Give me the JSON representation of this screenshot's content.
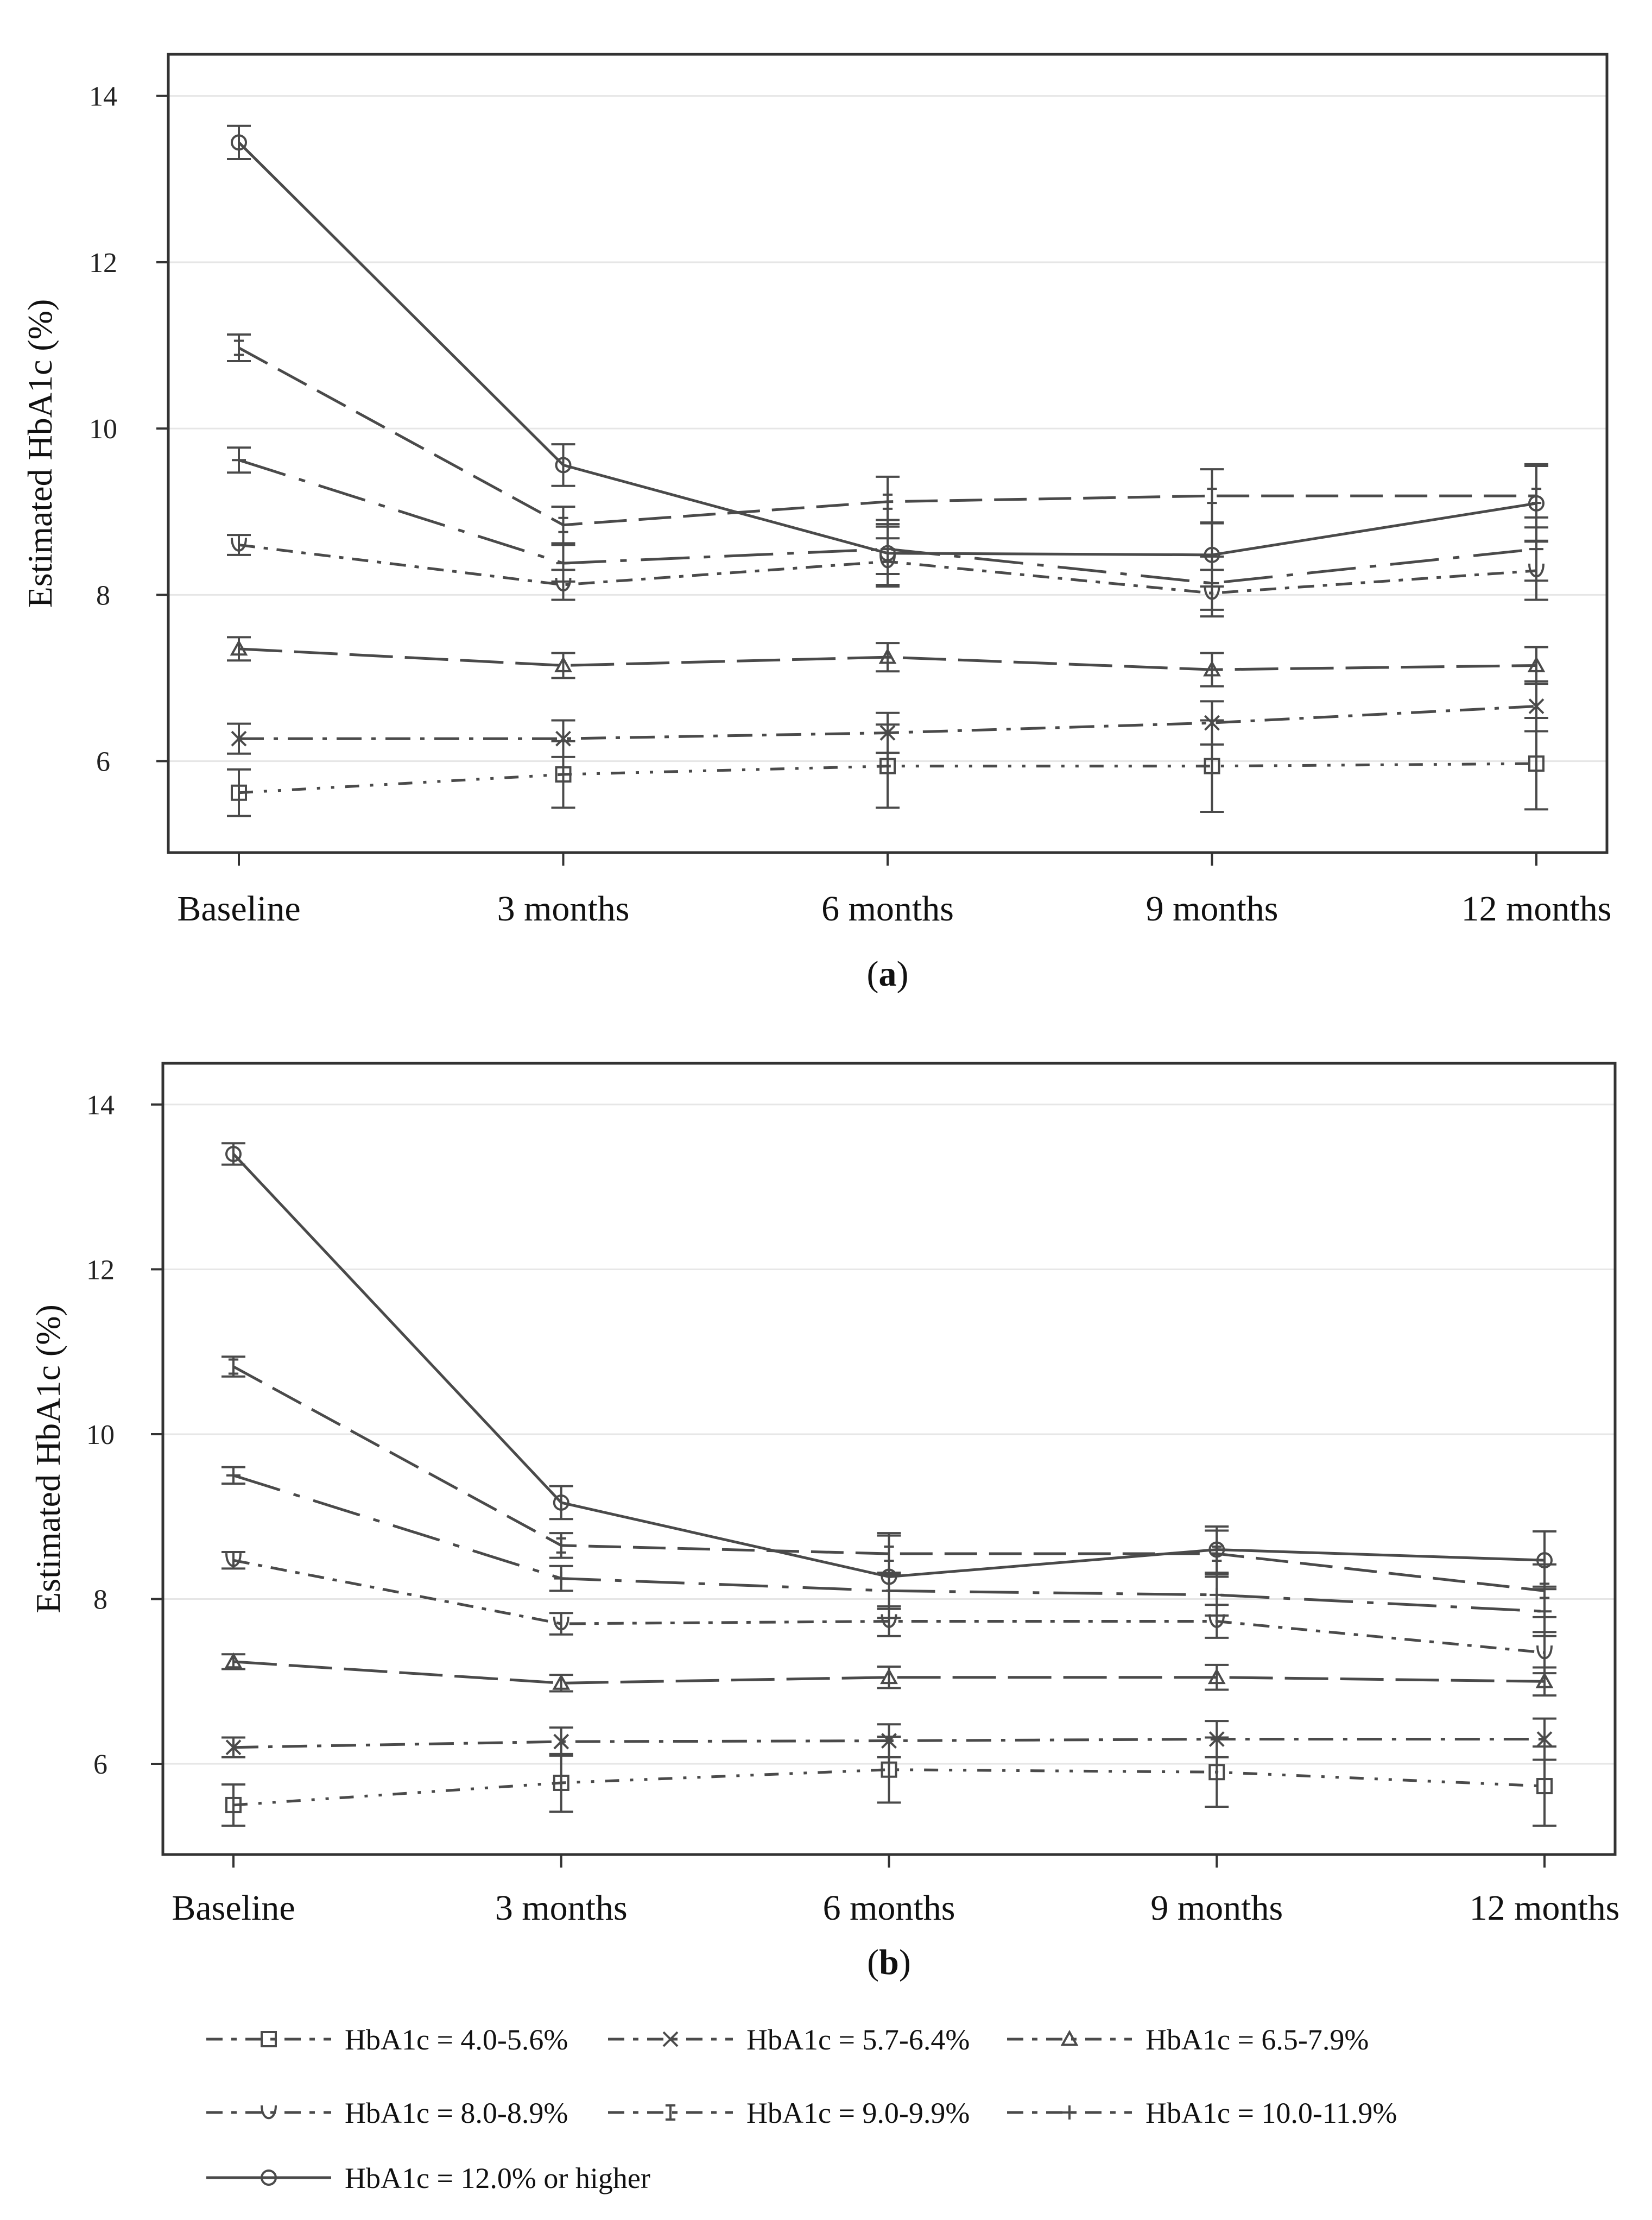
{
  "chart_data": [
    {
      "panel_label": "a",
      "type": "line",
      "ylabel": "Estimated HbA1c (%)",
      "xlabel": "",
      "categories": [
        "Baseline",
        "3 months",
        "6 months",
        "9 months",
        "12 months"
      ],
      "yticks": [
        "6",
        "8",
        "10",
        "12",
        "14"
      ],
      "ylim": [
        4.9,
        14.5
      ],
      "grid": true,
      "series": [
        {
          "name": "HbA1c = 4.0-5.6%",
          "values": [
            5.62,
            5.84,
            5.94,
            5.94,
            5.97
          ],
          "err": [
            0.28,
            0.4,
            0.5,
            0.55,
            0.55
          ]
        },
        {
          "name": "HbA1c = 5.7-6.4%",
          "values": [
            6.27,
            6.27,
            6.34,
            6.46,
            6.66
          ],
          "err": [
            0.18,
            0.22,
            0.24,
            0.26,
            0.3
          ]
        },
        {
          "name": "HbA1c = 6.5-7.9%",
          "values": [
            7.35,
            7.15,
            7.25,
            7.1,
            7.15
          ],
          "err": [
            0.14,
            0.15,
            0.17,
            0.2,
            0.22
          ]
        },
        {
          "name": "HbA1c = 8.0-8.9%",
          "values": [
            8.6,
            8.12,
            8.4,
            8.02,
            8.29
          ],
          "err": [
            0.12,
            0.18,
            0.28,
            0.28,
            0.35
          ]
        },
        {
          "name": "HbA1c = 9.0-9.9%",
          "values": [
            10.97,
            8.84,
            9.12,
            9.19,
            9.19
          ],
          "err": [
            0.16,
            0.22,
            0.3,
            0.32,
            0.38
          ]
        },
        {
          "name": "HbA1c = 10.0-11.9%",
          "values": [
            9.62,
            8.38,
            8.55,
            8.14,
            8.55
          ],
          "err": [
            0.15,
            0.22,
            0.3,
            0.32,
            0.38
          ]
        },
        {
          "name": "HbA1c = 12.0% or higher",
          "values": [
            13.44,
            9.56,
            8.5,
            8.48,
            9.1
          ],
          "err": [
            0.2,
            0.25,
            0.4,
            0.38,
            0.45
          ]
        }
      ]
    },
    {
      "panel_label": "b",
      "type": "line",
      "ylabel": "Estimated HbA1c (%)",
      "xlabel": "",
      "categories": [
        "Baseline",
        "3 months",
        "6 months",
        "9 months",
        "12 months"
      ],
      "yticks": [
        "6",
        "8",
        "10",
        "12",
        "14"
      ],
      "ylim": [
        4.9,
        14.5
      ],
      "grid": true,
      "series": [
        {
          "name": "HbA1c = 4.0-5.6%",
          "values": [
            5.5,
            5.77,
            5.93,
            5.9,
            5.73
          ],
          "err": [
            0.25,
            0.35,
            0.4,
            0.42,
            0.48
          ]
        },
        {
          "name": "HbA1c = 5.7-6.4%",
          "values": [
            6.2,
            6.27,
            6.28,
            6.3,
            6.3
          ],
          "err": [
            0.12,
            0.17,
            0.2,
            0.22,
            0.25
          ]
        },
        {
          "name": "HbA1c = 6.5-7.9%",
          "values": [
            7.24,
            6.98,
            7.05,
            7.05,
            7.0
          ],
          "err": [
            0.09,
            0.1,
            0.13,
            0.15,
            0.17
          ]
        },
        {
          "name": "HbA1c = 8.0-8.9%",
          "values": [
            8.47,
            7.7,
            7.73,
            7.73,
            7.35
          ],
          "err": [
            0.1,
            0.13,
            0.18,
            0.2,
            0.25
          ]
        },
        {
          "name": "HbA1c = 9.0-9.9%",
          "values": [
            10.82,
            8.65,
            8.55,
            8.55,
            8.1
          ],
          "err": [
            0.12,
            0.15,
            0.25,
            0.28,
            0.32
          ]
        },
        {
          "name": "HbA1c = 10.0-11.9%",
          "values": [
            9.5,
            8.25,
            8.1,
            8.05,
            7.85
          ],
          "err": [
            0.1,
            0.15,
            0.22,
            0.25,
            0.3
          ]
        },
        {
          "name": "HbA1c = 12.0% or higher",
          "values": [
            13.4,
            9.17,
            8.27,
            8.6,
            8.47
          ],
          "err": [
            0.13,
            0.2,
            0.5,
            0.28,
            0.35
          ]
        }
      ]
    }
  ],
  "legend": {
    "placement": "bottom",
    "entries": [
      {
        "label": "HbA1c = 4.0-5.6%"
      },
      {
        "label": "HbA1c = 5.7-6.4%"
      },
      {
        "label": "HbA1c = 6.5-7.9%"
      },
      {
        "label": "HbA1c = 8.0-8.9%"
      },
      {
        "label": "HbA1c = 9.0-9.9%"
      },
      {
        "label": "HbA1c = 10.0-11.9%"
      },
      {
        "label": "HbA1c = 12.0% or higher"
      }
    ]
  },
  "colors": {
    "line": "#4a4a4a",
    "grid": "#e6e6e6",
    "axis": "#333333"
  }
}
